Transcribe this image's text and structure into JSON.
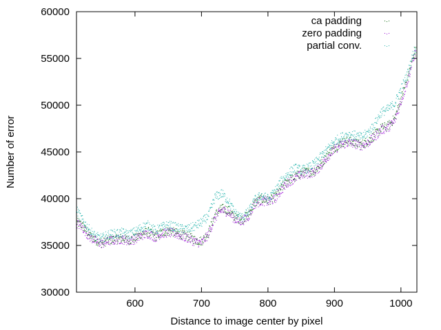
{
  "chart_data": {
    "type": "scatter",
    "title": "",
    "xlabel": "Distance to image center by pixel",
    "ylabel": "Number of error",
    "xlim": [
      512,
      1024
    ],
    "ylim": [
      30000,
      60000
    ],
    "xticks": [
      600,
      700,
      800,
      900,
      1000
    ],
    "xtick_labels": [
      "600",
      "700",
      "800",
      "900",
      "1000"
    ],
    "yticks": [
      30000,
      35000,
      40000,
      45000,
      50000,
      55000,
      60000
    ],
    "ytick_labels": [
      "30000",
      "35000",
      "40000",
      "45000",
      "50000",
      "55000",
      "60000"
    ],
    "grid": false,
    "legend_position": "top-right",
    "series": [
      {
        "name": "ca padding",
        "color": "#006400",
        "x": [
          512,
          520,
          530,
          540,
          550,
          560,
          570,
          580,
          590,
          600,
          610,
          620,
          630,
          640,
          650,
          660,
          670,
          680,
          690,
          700,
          710,
          720,
          730,
          740,
          750,
          760,
          770,
          780,
          790,
          800,
          810,
          820,
          830,
          840,
          850,
          860,
          870,
          880,
          890,
          900,
          910,
          920,
          930,
          940,
          950,
          960,
          970,
          980,
          990,
          1000,
          1010,
          1020
        ],
        "y": [
          37500,
          37200,
          36200,
          35600,
          35300,
          35600,
          35700,
          35800,
          35600,
          35800,
          36300,
          36500,
          36000,
          36400,
          36600,
          36400,
          36200,
          36000,
          35600,
          35500,
          36400,
          38300,
          39000,
          38800,
          38000,
          37800,
          38300,
          39600,
          40000,
          39800,
          40200,
          41200,
          42000,
          42300,
          42800,
          42900,
          43000,
          43800,
          44800,
          45500,
          46000,
          46200,
          46000,
          45800,
          46200,
          46800,
          47600,
          47800,
          48600,
          50800,
          53000,
          55800
        ]
      },
      {
        "name": "zero padding",
        "color": "#9400d3",
        "x": [
          512,
          520,
          530,
          540,
          550,
          560,
          570,
          580,
          590,
          600,
          610,
          620,
          630,
          640,
          650,
          660,
          670,
          680,
          690,
          700,
          710,
          720,
          730,
          740,
          750,
          760,
          770,
          780,
          790,
          800,
          810,
          820,
          830,
          840,
          850,
          860,
          870,
          880,
          890,
          900,
          910,
          920,
          930,
          940,
          950,
          960,
          970,
          980,
          990,
          1000,
          1010,
          1020
        ],
        "y": [
          37400,
          37000,
          36000,
          35500,
          35200,
          35500,
          35600,
          35700,
          35500,
          35700,
          36100,
          36300,
          35900,
          36300,
          36400,
          36300,
          36000,
          35800,
          35400,
          35300,
          36200,
          38000,
          38800,
          38600,
          37800,
          37600,
          38100,
          39500,
          39800,
          39700,
          40000,
          41000,
          41800,
          42200,
          42600,
          42700,
          42900,
          43600,
          44600,
          45300,
          45800,
          46000,
          45900,
          45700,
          46000,
          46600,
          47400,
          47600,
          48300,
          50500,
          52700,
          55500
        ]
      },
      {
        "name": "partial conv.",
        "color": "#20b2aa",
        "x": [
          512,
          520,
          530,
          540,
          550,
          560,
          570,
          580,
          590,
          600,
          610,
          620,
          630,
          640,
          650,
          660,
          670,
          680,
          690,
          700,
          710,
          720,
          730,
          740,
          750,
          760,
          770,
          780,
          790,
          800,
          810,
          820,
          830,
          840,
          850,
          860,
          870,
          880,
          890,
          900,
          910,
          920,
          930,
          940,
          950,
          960,
          970,
          980,
          990,
          1000,
          1010,
          1020
        ],
        "y": [
          38800,
          37800,
          36800,
          36000,
          35800,
          36200,
          36300,
          36400,
          36200,
          36500,
          37000,
          37200,
          36600,
          37000,
          37200,
          37000,
          36800,
          36800,
          37100,
          37500,
          38200,
          40200,
          40600,
          39800,
          38500,
          38000,
          38600,
          39900,
          40400,
          40000,
          40800,
          42000,
          42700,
          43300,
          43100,
          43300,
          43800,
          44600,
          45400,
          46200,
          46600,
          46900,
          46800,
          46600,
          47100,
          48000,
          49300,
          49600,
          50200,
          51800,
          53500,
          56000
        ]
      }
    ]
  }
}
